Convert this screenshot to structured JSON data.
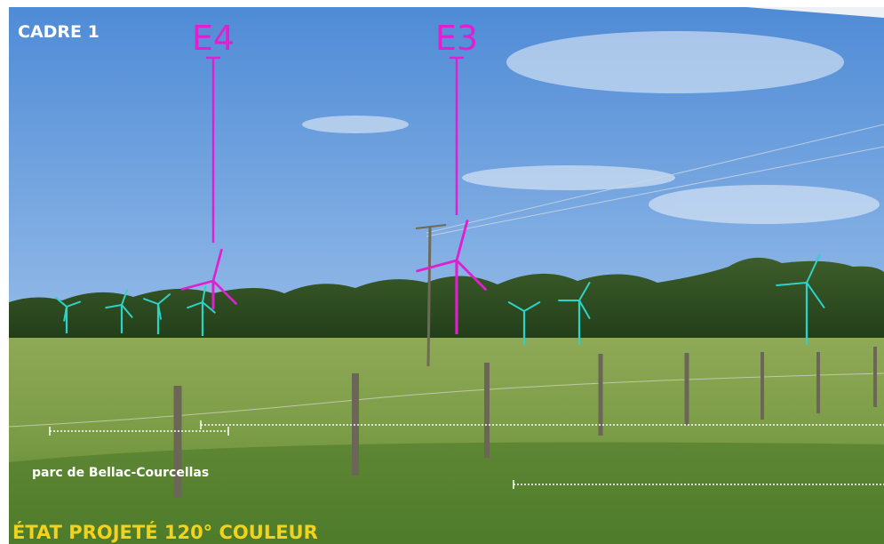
{
  "frame_label": "CADRE 1",
  "turbines": [
    {
      "label": "E4"
    },
    {
      "label": "E3"
    }
  ],
  "park_label": "parc de Bellac-Courcellas",
  "caption": "ÉTAT PROJETÉ 120° COULEUR"
}
